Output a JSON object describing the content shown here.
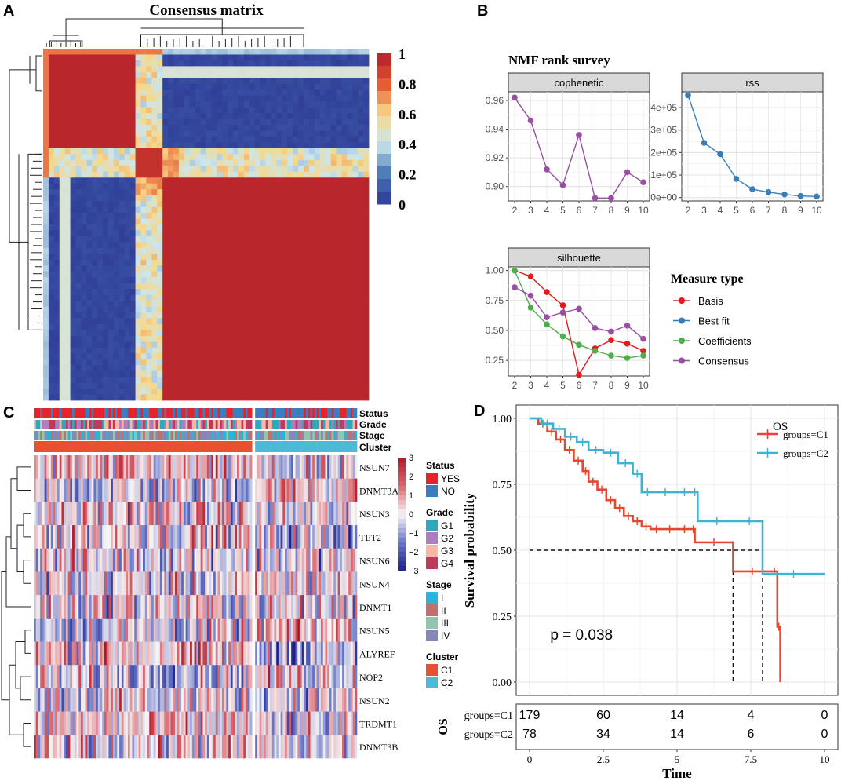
{
  "panel_labels": {
    "A": "A",
    "B": "B",
    "C": "C",
    "D": "D"
  },
  "chart_data": [
    {
      "panel": "A",
      "type": "heatmap",
      "title": "Consensus matrix",
      "colorbar": {
        "ticks": [
          "1",
          "0.8",
          "0.6",
          "0.4",
          "0.2",
          "0"
        ],
        "values": [
          1,
          0.8,
          0.6,
          0.4,
          0.2,
          0
        ]
      },
      "block_edges": [
        0,
        0.29,
        0.36,
        1
      ],
      "colors": {
        "high": "#b11f2c",
        "low": "#2e3896"
      }
    },
    {
      "panel": "B",
      "type": "line",
      "title": "NMF rank survey",
      "facets": [
        {
          "name": "cophenetic",
          "x": [
            2,
            3,
            4,
            5,
            6,
            7,
            8,
            9,
            10
          ],
          "ylim": [
            0.89,
            0.966
          ],
          "yticks": [
            0.9,
            0.92,
            0.94,
            0.96
          ],
          "ytick_labels": [
            "0.90",
            "0.92",
            "0.94",
            "0.96"
          ],
          "series": [
            {
              "name": "Consensus",
              "values": [
                0.962,
                0.946,
                0.912,
                0.901,
                0.936,
                0.892,
                0.892,
                0.91,
                0.903
              ]
            }
          ]
        },
        {
          "name": "rss",
          "x": [
            2,
            3,
            4,
            5,
            6,
            7,
            8,
            9,
            10
          ],
          "ylim": [
            -15000,
            470000
          ],
          "yticks": [
            0,
            100000,
            200000,
            300000,
            400000
          ],
          "ytick_labels": [
            "0e+00",
            "1e+05",
            "2e+05",
            "3e+05",
            "4e+05"
          ],
          "series": [
            {
              "name": "Best fit",
              "values": [
                455000,
                243000,
                193000,
                83000,
                37000,
                24000,
                14000,
                7000,
                5000
              ]
            }
          ]
        },
        {
          "name": "silhouette",
          "x": [
            2,
            3,
            4,
            5,
            6,
            7,
            8,
            9,
            10
          ],
          "ylim": [
            0.12,
            1.03
          ],
          "yticks": [
            0.25,
            0.5,
            0.75,
            1.0
          ],
          "ytick_labels": [
            "0.25",
            "0.50",
            "0.75",
            "1.00"
          ],
          "series": [
            {
              "name": "Basis",
              "values": [
                1.0,
                0.95,
                0.82,
                0.71,
                0.13,
                0.35,
                0.42,
                0.39,
                0.33
              ]
            },
            {
              "name": "Coefficients",
              "values": [
                1.0,
                0.69,
                0.55,
                0.45,
                0.38,
                0.33,
                0.29,
                0.27,
                0.29
              ]
            },
            {
              "name": "Consensus",
              "values": [
                0.86,
                0.79,
                0.61,
                0.65,
                0.68,
                0.52,
                0.49,
                0.54,
                0.43
              ]
            }
          ]
        }
      ],
      "xticks": [
        "2",
        "3",
        "4",
        "5",
        "6",
        "7",
        "8",
        "9",
        "10"
      ],
      "legend": {
        "title": "Measure type",
        "position": "right",
        "items": [
          {
            "name": "Basis",
            "color": "#e41a1c"
          },
          {
            "name": "Best fit",
            "color": "#377eb8"
          },
          {
            "name": "Coefficients",
            "color": "#4daf4a"
          },
          {
            "name": "Consensus",
            "color": "#984ea3"
          }
        ]
      }
    },
    {
      "panel": "C",
      "type": "heatmap",
      "genes": [
        "NSUN7",
        "DNMT3A",
        "NSUN3",
        "TET2",
        "NSUN6",
        "NSUN4",
        "DNMT1",
        "NSUN5",
        "ALYREF",
        "NOP2",
        "NSUN2",
        "TRDMT1",
        "DNMT3B"
      ],
      "annotation_rows": [
        "Status",
        "Grade",
        "Stage",
        "Cluster"
      ],
      "cluster_split": {
        "C1": 0.68,
        "C2": 0.32
      },
      "colorbar": {
        "ticks": [
          "3",
          "2",
          "1",
          "0",
          "−1",
          "−2",
          "−3"
        ],
        "values": [
          3,
          2,
          1,
          0,
          -1,
          -2,
          -3
        ]
      },
      "legends": [
        {
          "title": "Status",
          "items": [
            {
              "label": "YES",
              "color": "#e6222a"
            },
            {
              "label": "NO",
              "color": "#3a7ebf"
            }
          ]
        },
        {
          "title": "Grade",
          "items": [
            {
              "label": "G1",
              "color": "#2ea8bd"
            },
            {
              "label": "G2",
              "color": "#b07cc0"
            },
            {
              "label": "G3",
              "color": "#f7b9a4"
            },
            {
              "label": "G4",
              "color": "#be3a5c"
            }
          ]
        },
        {
          "title": "Stage",
          "items": [
            {
              "label": "I",
              "color": "#29b5d9"
            },
            {
              "label": "II",
              "color": "#c0706c"
            },
            {
              "label": "III",
              "color": "#93c5ae"
            },
            {
              "label": "IV",
              "color": "#8786b8"
            }
          ]
        },
        {
          "title": "Cluster",
          "items": [
            {
              "label": "C1",
              "color": "#e8502f"
            },
            {
              "label": "C2",
              "color": "#4cbad6"
            }
          ]
        }
      ]
    },
    {
      "panel": "D",
      "type": "line",
      "subtype": "kaplan-meier",
      "xlabel": "Time",
      "ylabel": "Survival probability",
      "xlim": [
        0,
        10
      ],
      "ylim": [
        0,
        1
      ],
      "xticks": [
        0,
        2.5,
        5,
        7.5,
        10
      ],
      "xtick_labels": [
        "0",
        "2.5",
        "5",
        "7.5",
        "10"
      ],
      "yticks": [
        0,
        0.25,
        0.5,
        0.75,
        1.0
      ],
      "ytick_labels": [
        "0.00",
        "0.25",
        "0.50",
        "0.75",
        "1.00"
      ],
      "legend": {
        "title": "OS",
        "position": "top-right"
      },
      "pvalue": "p = 0.038",
      "median_survival": {
        "y": 0.5,
        "C1": 6.9,
        "C2": 7.9
      },
      "series": [
        {
          "name": "groups=C1",
          "color": "#e8472e",
          "x": [
            0,
            0.3,
            0.6,
            0.9,
            1.2,
            1.5,
            1.8,
            2.0,
            2.3,
            2.6,
            2.9,
            3.2,
            3.5,
            3.8,
            4.1,
            4.5,
            5.0,
            5.5,
            5.6,
            6.9,
            8.2,
            8.4,
            8.5
          ],
          "y": [
            1.0,
            0.98,
            0.95,
            0.92,
            0.88,
            0.84,
            0.8,
            0.76,
            0.73,
            0.69,
            0.66,
            0.63,
            0.61,
            0.59,
            0.58,
            0.58,
            0.58,
            0.58,
            0.53,
            0.42,
            0.42,
            0.21,
            0.0
          ]
        },
        {
          "name": "groups=C2",
          "color": "#3fb3d2",
          "x": [
            0,
            0.4,
            0.8,
            1.2,
            1.6,
            2.0,
            2.5,
            3.0,
            3.5,
            3.8,
            4.2,
            5.0,
            5.5,
            5.7,
            7.0,
            7.9,
            10.0
          ],
          "y": [
            1.0,
            0.98,
            0.96,
            0.93,
            0.91,
            0.88,
            0.87,
            0.83,
            0.79,
            0.72,
            0.72,
            0.72,
            0.72,
            0.61,
            0.61,
            0.41,
            0.41
          ]
        }
      ],
      "risk_table": {
        "title": "OS",
        "rows": [
          {
            "label": "groups=C1",
            "counts": [
              "179",
              "60",
              "14",
              "4",
              "0"
            ]
          },
          {
            "label": "groups=C2",
            "counts": [
              "78",
              "34",
              "14",
              "6",
              "0"
            ]
          }
        ]
      }
    }
  ]
}
